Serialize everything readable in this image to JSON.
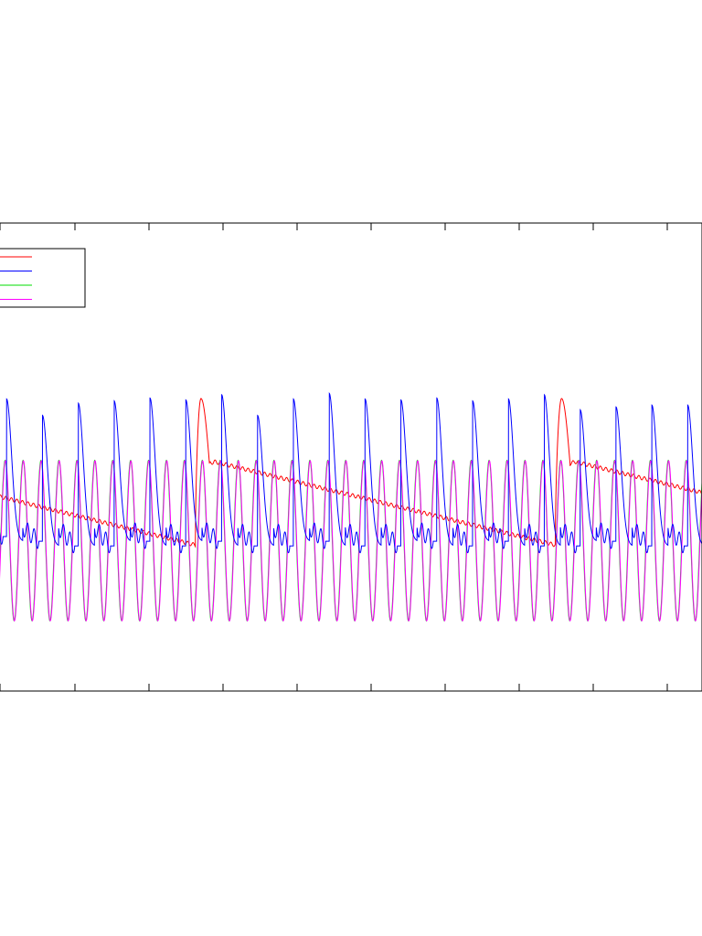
{
  "chart_data": {
    "type": "line",
    "title": "",
    "xlabel": "",
    "ylabel": "",
    "xlim": [
      0,
      1
    ],
    "ylim": [
      0,
      1
    ],
    "grid": false,
    "legend": {
      "position": "top-left",
      "entries": [
        "",
        "",
        "",
        ""
      ]
    },
    "series": [
      {
        "color": "#ff0000",
        "style": "sawtooth-with-spikes",
        "points": [
          [
            0.0,
            0.583
          ],
          [
            0.282,
            0.688
          ],
          [
            0.29,
            0.375
          ],
          [
            0.302,
            0.514
          ],
          [
            0.309,
            0.51
          ],
          [
            0.792,
            0.688
          ],
          [
            0.801,
            0.375
          ],
          [
            0.813,
            0.514
          ],
          [
            0.82,
            0.51
          ],
          [
            1.0,
            0.576
          ]
        ]
      },
      {
        "color": "#0000ff",
        "style": "oscillation",
        "period": 0.0508,
        "peaks": [
          0.365,
          0.376,
          0.411,
          0.385,
          0.38,
          0.374,
          0.378,
          0.367,
          0.411,
          0.376,
          0.364,
          0.376,
          0.378,
          0.374,
          0.38,
          0.376,
          0.367,
          0.399,
          0.393,
          0.389
        ],
        "troughs": [
          0.67,
          0.68,
          0.69,
          0.69,
          0.68,
          0.69,
          0.68,
          0.69,
          0.69,
          0.68,
          0.69,
          0.69,
          0.68,
          0.69,
          0.68,
          0.69,
          0.69,
          0.68,
          0.69,
          0.69
        ]
      },
      {
        "color": "#00dd00",
        "style": "oscillation",
        "period": 0.0254,
        "peak": 0.507,
        "trough": 0.85
      },
      {
        "color": "#ff00ff",
        "style": "oscillation",
        "period": 0.0254,
        "peak": 0.508,
        "trough": 0.85
      }
    ]
  }
}
